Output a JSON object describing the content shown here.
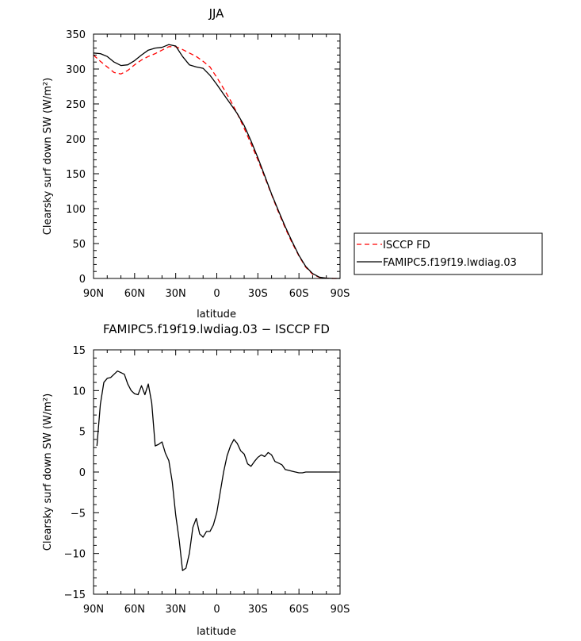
{
  "chart_data": [
    {
      "type": "line",
      "title": "JJA",
      "xlabel": "latitude",
      "ylabel": "Clearsky surf down SW (W/m²)",
      "ylim": [
        0,
        350
      ],
      "xlim": [
        90,
        -90
      ],
      "x_ticks": [
        90,
        60,
        30,
        0,
        -30,
        -60,
        -90
      ],
      "x_tick_labels": [
        "90N",
        "60N",
        "30N",
        "0",
        "30S",
        "60S",
        "90S"
      ],
      "y_ticks": [
        0,
        50,
        100,
        150,
        200,
        250,
        300,
        350
      ],
      "grid": false,
      "legend": {
        "placement": "outside-right"
      },
      "series": [
        {
          "name": "ISCCP FD",
          "color": "#ff0000",
          "dash": "dashed",
          "x": [
            90,
            85,
            80,
            75,
            70,
            65,
            60,
            55,
            50,
            45,
            40,
            35,
            30,
            25,
            20,
            15,
            10,
            5,
            0,
            -5,
            -10,
            -15,
            -20,
            -25,
            -30,
            -35,
            -40,
            -45,
            -50,
            -55,
            -60,
            -65,
            -70,
            -75,
            -80,
            -85,
            -90
          ],
          "values": [
            320,
            311,
            303,
            295,
            293,
            298,
            306,
            313,
            318,
            322,
            327,
            332,
            332,
            328,
            323,
            318,
            311,
            303,
            288,
            272,
            255,
            236,
            215,
            193,
            170,
            145,
            120,
            95,
            72,
            51,
            32,
            16,
            6,
            1.5,
            0.3,
            0,
            0
          ]
        },
        {
          "name": "FAMIPC5.f19f19.lwdiag.03",
          "color": "#000000",
          "dash": "solid",
          "x": [
            90,
            85,
            80,
            75,
            70,
            65,
            60,
            55,
            50,
            45,
            40,
            35,
            30,
            25,
            20,
            15,
            10,
            5,
            0,
            -5,
            -10,
            -15,
            -20,
            -25,
            -30,
            -35,
            -40,
            -45,
            -50,
            -55,
            -60,
            -65,
            -70,
            -75,
            -80,
            -85,
            -90
          ],
          "values": [
            323,
            322,
            318,
            310,
            305,
            306,
            312,
            320,
            327,
            330,
            331,
            335,
            333,
            318,
            306,
            303,
            301,
            291,
            278,
            264,
            250,
            236,
            219,
            197,
            173,
            147,
            121,
            97,
            74,
            53,
            33,
            17,
            7,
            1.8,
            0.3,
            0,
            0
          ]
        }
      ]
    },
    {
      "type": "line",
      "title": "FAMIPC5.f19f19.lwdiag.03 − ISCCP FD",
      "xlabel": "latitude",
      "ylabel": "Clearsky surf down SW (W/m²)",
      "ylim": [
        -15,
        15
      ],
      "xlim": [
        90,
        -90
      ],
      "x_ticks": [
        90,
        60,
        30,
        0,
        -30,
        -60,
        -90
      ],
      "x_tick_labels": [
        "90N",
        "60N",
        "30N",
        "0",
        "30S",
        "60S",
        "90S"
      ],
      "y_ticks": [
        -15,
        -10,
        -5,
        0,
        5,
        10,
        15
      ],
      "grid": false,
      "series": [
        {
          "color": "#000000",
          "dash": "solid",
          "x": [
            87.5,
            85,
            82.5,
            80,
            77.5,
            75,
            72.5,
            70,
            67.5,
            65,
            62.5,
            60,
            57.5,
            55,
            52.5,
            50,
            47.5,
            45,
            42.5,
            40,
            37.5,
            35,
            32.5,
            30,
            27.5,
            25,
            22.5,
            20,
            17.5,
            15,
            12.5,
            10,
            7.5,
            5,
            2.5,
            0,
            -2.5,
            -5,
            -7.5,
            -10,
            -12.5,
            -15,
            -17.5,
            -20,
            -22.5,
            -25,
            -27.5,
            -30,
            -32.5,
            -35,
            -37.5,
            -40,
            -42.5,
            -45,
            -47.5,
            -50,
            -52.5,
            -55,
            -57.5,
            -60,
            -62.5,
            -65,
            -67.5,
            -70,
            -72.5,
            -75,
            -77.5,
            -80,
            -82.5,
            -85,
            -87.5
          ],
          "values": [
            3.2,
            8.3,
            11.0,
            11.5,
            11.6,
            12.0,
            12.4,
            12.2,
            12.0,
            10.8,
            10.0,
            9.6,
            9.5,
            10.6,
            9.5,
            10.8,
            8.5,
            3.2,
            3.4,
            3.7,
            2.3,
            1.4,
            -1.2,
            -5.3,
            -8.3,
            -12.1,
            -11.8,
            -10.0,
            -6.8,
            -5.7,
            -7.6,
            -8.0,
            -7.3,
            -7.3,
            -6.5,
            -5.0,
            -2.5,
            0.0,
            2.0,
            3.2,
            4.0,
            3.5,
            2.6,
            2.2,
            1.0,
            0.7,
            1.3,
            1.8,
            2.1,
            1.9,
            2.4,
            2.1,
            1.3,
            1.1,
            0.9,
            0.3,
            0.2,
            0.1,
            0.0,
            -0.1,
            -0.1,
            0.0,
            0.0,
            0.0,
            0.0,
            0.0,
            0.0,
            0.0,
            0.0,
            0.0,
            0.0
          ]
        }
      ]
    }
  ]
}
